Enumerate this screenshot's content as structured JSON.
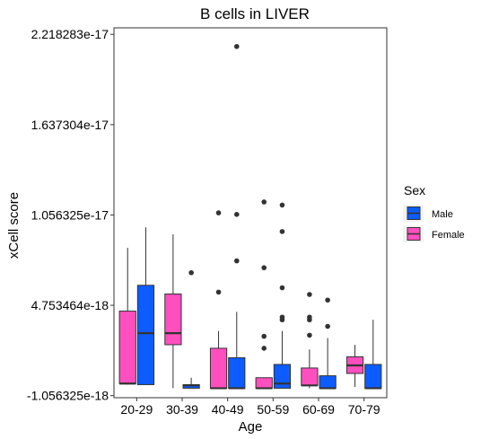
{
  "chart_data": {
    "type": "boxplot",
    "title": "B cells in LIVER",
    "xlabel": "Age",
    "ylabel": "xCell score",
    "categories": [
      "20-29",
      "30-39",
      "40-49",
      "50-59",
      "60-69",
      "70-79"
    ],
    "ylim": [
      -1.19e-18,
      2.26e-17
    ],
    "yticks": [
      {
        "value": -1.056325e-18,
        "label": "-1.056325e-18"
      },
      {
        "value": 4.753464e-18,
        "label": "4.753464e-18"
      },
      {
        "value": 1.056325e-17,
        "label": "1.056325e-17"
      },
      {
        "value": 1.637304e-17,
        "label": "1.637304e-17"
      },
      {
        "value": 2.218283e-17,
        "label": "2.218283e-17"
      }
    ],
    "legend": {
      "title": "Sex",
      "position": "right",
      "entries": [
        {
          "name": "Male",
          "color": "#0D5CFF"
        },
        {
          "name": "Female",
          "color": "#FF4FBE"
        }
      ]
    },
    "grid": false,
    "series": [
      {
        "name": "Female",
        "color": "#FF4FBE",
        "boxes": [
          {
            "category": "20-29",
            "min": -3.5e-19,
            "q1": -2.8e-19,
            "median": -2.8e-19,
            "q3": 4.38e-18,
            "max": 8.45e-18,
            "outliers": []
          },
          {
            "category": "30-39",
            "min": -5.8e-19,
            "q1": 2.22e-18,
            "median": 2.96e-18,
            "q3": 5.48e-18,
            "max": 9.32e-18,
            "outliers": []
          },
          {
            "category": "40-49",
            "min": -5.8e-19,
            "q1": -5.8e-19,
            "median": -5.8e-19,
            "q3": 1.99e-18,
            "max": 3.1e-18,
            "outliers": [
              5.6e-18,
              1.07e-17
            ]
          },
          {
            "category": "50-59",
            "min": -5.8e-19,
            "q1": -5.8e-19,
            "median": -5.8e-19,
            "q3": 9.5e-20,
            "max": 9.5e-20,
            "outliers": [
              1.99e-18,
              2.76e-18,
              7.17e-18,
              1.14e-17
            ]
          },
          {
            "category": "60-69",
            "min": -5.8e-19,
            "q1": -4e-19,
            "median": -4e-19,
            "q3": 7.2e-19,
            "max": 1.91e-18,
            "outliers": [
              2.83e-18,
              3.82e-18,
              3.99e-18,
              5.45e-18
            ]
          },
          {
            "category": "70-79",
            "min": -5e-19,
            "q1": 3.7e-19,
            "median": 8.9e-19,
            "q3": 1.44e-18,
            "max": 2.21e-18,
            "outliers": []
          }
        ]
      },
      {
        "name": "Male",
        "color": "#0D5CFF",
        "boxes": [
          {
            "category": "20-29",
            "min": -3.5e-19,
            "q1": -3.5e-19,
            "median": 2.96e-18,
            "q3": 6.04e-18,
            "max": 9.77e-18,
            "outliers": []
          },
          {
            "category": "30-39",
            "min": -5.8e-19,
            "q1": -5.8e-19,
            "median": -4e-19,
            "q3": -3.5e-19,
            "max": 9.5e-20,
            "outliers": [
              6.85e-18
            ]
          },
          {
            "category": "40-49",
            "min": -5.8e-19,
            "q1": -5.8e-19,
            "median": -5.8e-19,
            "q3": 1.38e-18,
            "max": 4.33e-18,
            "outliers": [
              7.61e-18,
              1.06e-17,
              2.14e-17
            ]
          },
          {
            "category": "50-59",
            "min": -5.8e-19,
            "q1": -5.8e-19,
            "median": -2.8e-19,
            "q3": 9.5e-19,
            "max": 3.1e-18,
            "outliers": [
              3.82e-18,
              3.99e-18,
              5.88e-18,
              9.5e-18,
              1.12e-17
            ]
          },
          {
            "category": "60-69",
            "min": -5.8e-19,
            "q1": -5.8e-19,
            "median": -5.8e-19,
            "q3": 2.2e-19,
            "max": 2.65e-18,
            "outliers": [
              3.4e-18,
              5.09e-18
            ]
          },
          {
            "category": "70-79",
            "min": -5.8e-19,
            "q1": -5.8e-19,
            "median": -5.8e-19,
            "q3": 9.5e-19,
            "max": 3.82e-18,
            "outliers": []
          }
        ]
      }
    ]
  }
}
